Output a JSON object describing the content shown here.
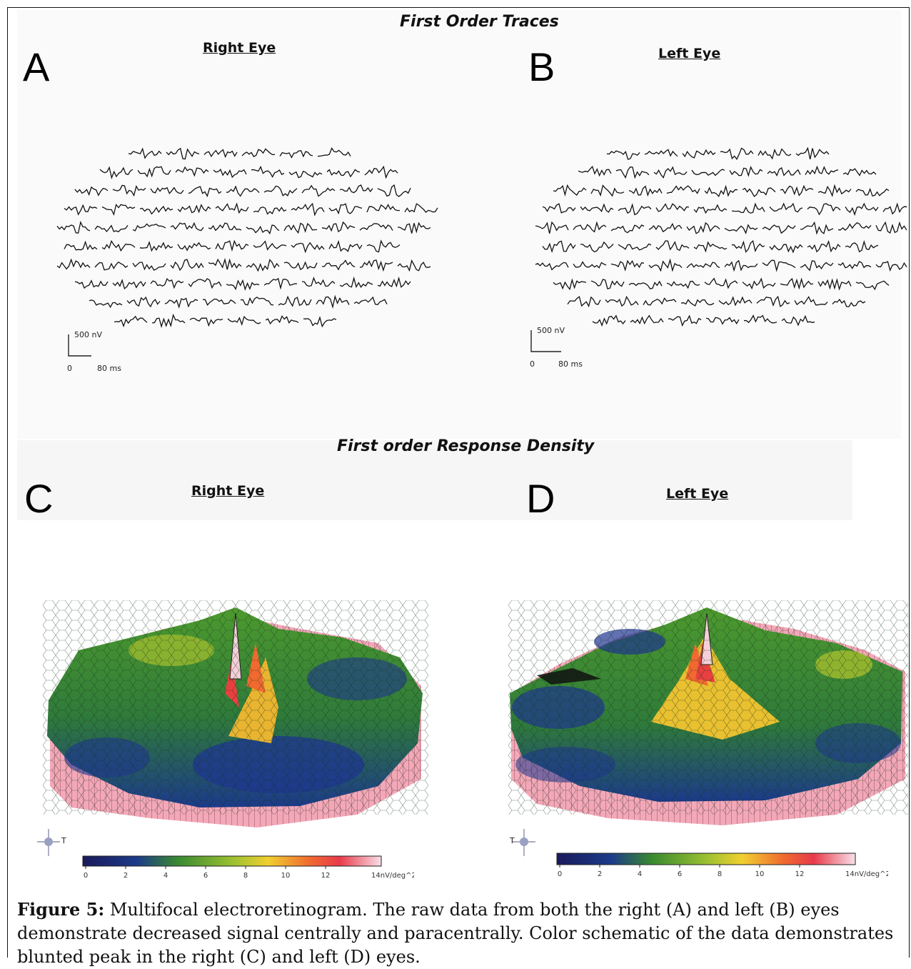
{
  "figure": {
    "top_section_title": "First Order Traces",
    "bottom_section_title": "First order Response Density",
    "panels": {
      "A": {
        "letter": "A",
        "eye_label": "Right Eye",
        "scale_amplitude": "500 nV",
        "scale_zero": "0",
        "scale_time": "80 ms"
      },
      "B": {
        "letter": "B",
        "eye_label": "Left Eye",
        "scale_amplitude": "500 nV",
        "scale_zero": "0",
        "scale_time": "80 ms"
      },
      "C": {
        "letter": "C",
        "eye_label": "Right Eye",
        "colorbar_ticks": [
          "0",
          "2",
          "4",
          "6",
          "8",
          "10",
          "12"
        ],
        "colorbar_unit": "14nV/deg^2",
        "orientation_label": "T"
      },
      "D": {
        "letter": "D",
        "eye_label": "Left Eye",
        "colorbar_ticks": [
          "0",
          "2",
          "4",
          "6",
          "8",
          "10",
          "12"
        ],
        "colorbar_unit": "14nV/deg^2",
        "orientation_label": "T"
      }
    },
    "colors": {
      "trace": "#111111",
      "surface_low": "#1c2f86",
      "surface_mid": "#3e8a2a",
      "surface_high": "#e8d63a",
      "surface_peak": "#e83a3a",
      "surface_side": "#f0a0b0"
    }
  },
  "caption": {
    "label": "Figure 5:",
    "text": " Multifocal electroretinogram.  The raw data from both the right (A) and left (B) eyes demonstrate decreased signal centrally and paracentrally.  Color schematic of the data demonstrates blunted peak in the right (C) and left (D) eyes."
  }
}
